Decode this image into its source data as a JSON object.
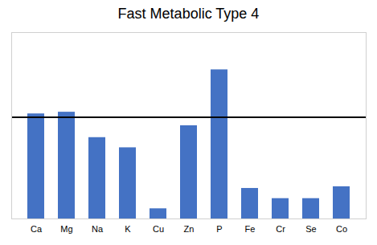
{
  "chart_data": {
    "type": "bar",
    "title": "Fast Metabolic Type 4",
    "categories": [
      "Ca",
      "Mg",
      "Na",
      "K",
      "Cu",
      "Zn",
      "P",
      "Fe",
      "Cr",
      "Se",
      "Co"
    ],
    "values": [
      6.2,
      6.3,
      4.8,
      4.2,
      0.6,
      5.5,
      8.8,
      1.8,
      1.2,
      1.2,
      1.9
    ],
    "color": "#4472C4",
    "reference_line": 6.0,
    "ylim": [
      0,
      11
    ],
    "grid": false,
    "tick_labels": "x"
  }
}
